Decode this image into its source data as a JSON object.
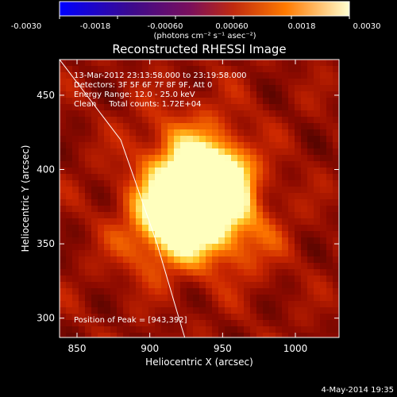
{
  "chart_data": {
    "type": "heatmap",
    "title": "Reconstructed RHESSI Image",
    "xlabel": "Heliocentric X (arcsec)",
    "ylabel": "Heliocentric Y (arcsec)",
    "xlim": [
      838,
      1030
    ],
    "ylim": [
      287,
      474
    ],
    "x_ticks": [
      850,
      900,
      950,
      1000
    ],
    "y_ticks": [
      300,
      350,
      400,
      450
    ],
    "colorbar": {
      "range": [
        -0.003,
        0.003
      ],
      "ticks": [
        "-0.0030",
        "-0.0018",
        "-0.00060",
        "0.00060",
        "0.0018",
        "0.0030"
      ],
      "label": "(photons cm⁻² s⁻¹ asec⁻²)"
    },
    "annotations": [
      "13-Mar-2012 23:13:58.000 to 23:19:58.000",
      "Detectors: 3F 5F 6F 7F 8F 9F, Att 0",
      "Energy Range: 12.0 - 25.0 keV",
      "Clean     Total counts: 1.72E+04"
    ],
    "peak_label": "Position of Peak = [943,392]",
    "peak": [
      943,
      392
    ],
    "blobs": [
      {
        "x": 943,
        "y": 392,
        "amp": 1.0,
        "sx": 16,
        "sy": 14
      },
      {
        "x": 925,
        "y": 373,
        "amp": 0.85,
        "sx": 20,
        "sy": 16
      },
      {
        "x": 928,
        "y": 400,
        "amp": 0.55,
        "sx": 26,
        "sy": 26
      },
      {
        "x": 910,
        "y": 350,
        "amp": 0.35,
        "sx": 24,
        "sy": 18
      },
      {
        "x": 960,
        "y": 355,
        "amp": 0.3,
        "sx": 22,
        "sy": 20
      }
    ],
    "limb_curve": [
      [
        838,
        474
      ],
      [
        880,
        420
      ],
      [
        905,
        350
      ],
      [
        920,
        300
      ],
      [
        924,
        287
      ]
    ],
    "limb_color": "#ffffff",
    "colors": {
      "background": "#000000",
      "text": "#ffffff"
    }
  },
  "footer_date": "4-May-2014 19:35"
}
